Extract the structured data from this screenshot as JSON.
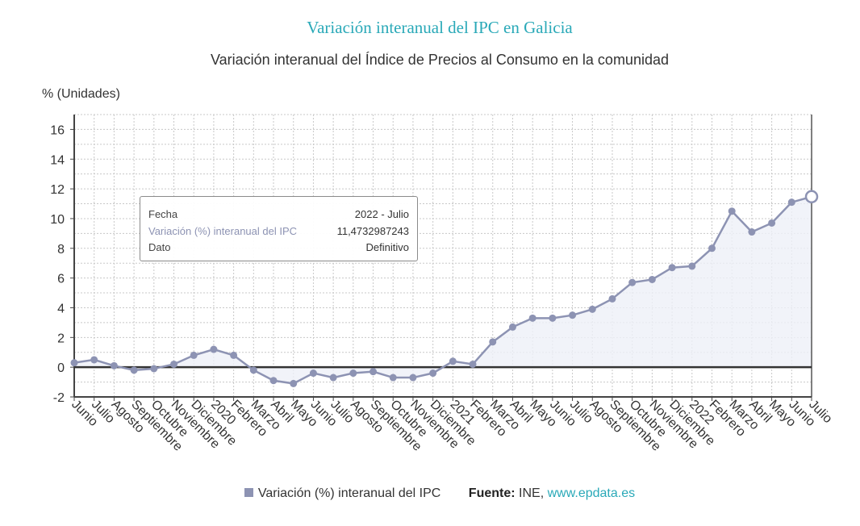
{
  "header": {
    "title": "Variación interanual del IPC en Galicia",
    "subtitle": "Variación interanual del Índice de Precios al Consumo en la comunidad"
  },
  "tooltip": {
    "rows": [
      {
        "label": "Fecha",
        "value": "2022 - Julio"
      },
      {
        "label": "Variación (%) interanual del IPC",
        "value": "11,4732987243"
      },
      {
        "label": "Dato",
        "value": "Definitivo"
      }
    ]
  },
  "legend": {
    "series_label": "Variación (%) interanual del IPC",
    "source_label": "Fuente:",
    "source_value": "INE,",
    "source_link": "www.epdata.es"
  },
  "colors": {
    "series": "#8d93b3",
    "title": "#2aa9b8",
    "fill": "#eef0f7"
  },
  "chart_data": {
    "type": "area",
    "ylabel": "% (Unidades)",
    "ylim": [
      -2,
      17
    ],
    "yticks": [
      -2,
      0,
      2,
      4,
      6,
      8,
      10,
      12,
      14,
      16
    ],
    "grid": true,
    "categories": [
      "Junio",
      "Julio",
      "Agosto",
      "Septiembre",
      "Octubre",
      "Noviembre",
      "Diciembre",
      "2020",
      "Febrero",
      "Marzo",
      "Abril",
      "Mayo",
      "Junio",
      "Julio",
      "Agosto",
      "Septiembre",
      "Octubre",
      "Noviembre",
      "Diciembre",
      "2021",
      "Febrero",
      "Marzo",
      "Abril",
      "Mayo",
      "Junio",
      "Julio",
      "Agosto",
      "Septiembre",
      "Octubre",
      "Noviembre",
      "Diciembre",
      "2022",
      "Febrero",
      "Marzo",
      "Abril",
      "Mayo",
      "Junio",
      "Julio"
    ],
    "series": [
      {
        "name": "Variación (%) interanual del IPC",
        "values": [
          0.3,
          0.5,
          0.1,
          -0.2,
          -0.1,
          0.2,
          0.8,
          1.2,
          0.8,
          -0.2,
          -0.9,
          -1.1,
          -0.4,
          -0.7,
          -0.4,
          -0.3,
          -0.7,
          -0.7,
          -0.4,
          0.4,
          0.2,
          1.7,
          2.7,
          3.3,
          3.3,
          3.5,
          3.9,
          4.6,
          5.7,
          5.9,
          6.7,
          6.8,
          8.0,
          10.5,
          9.1,
          9.7,
          11.1,
          11.4732987243
        ]
      }
    ],
    "highlight_index": 37
  }
}
